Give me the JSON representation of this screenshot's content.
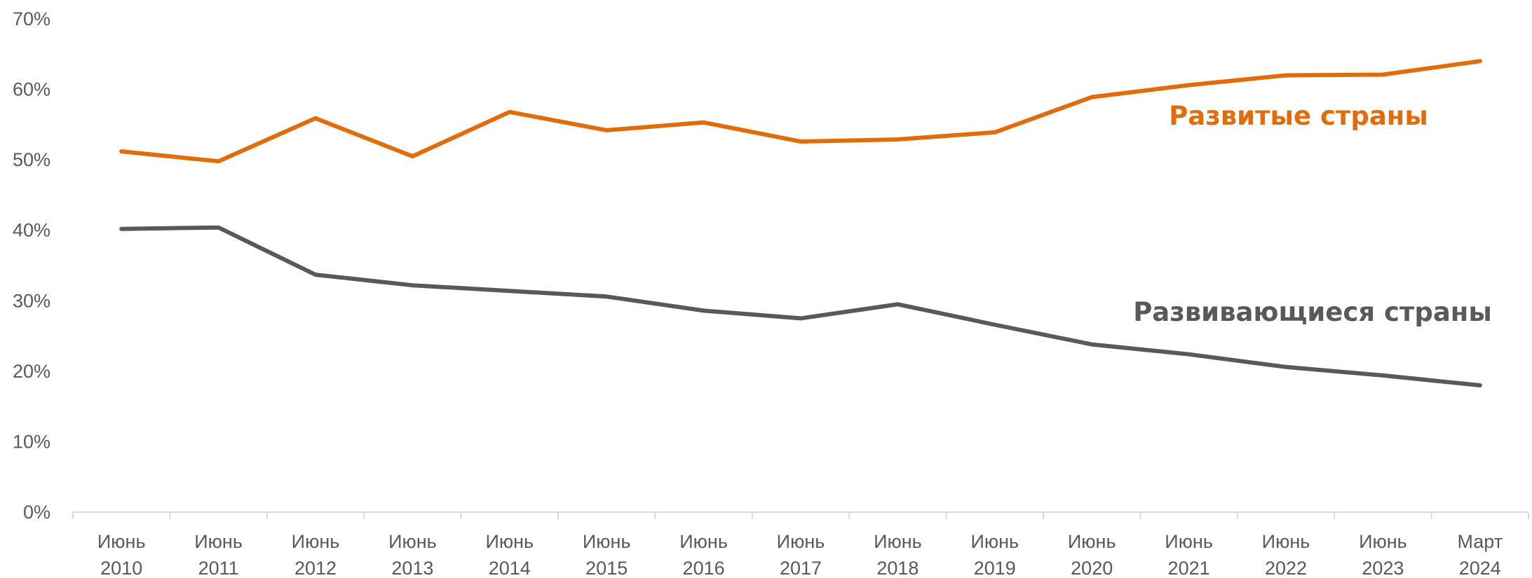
{
  "chart_data": {
    "type": "line",
    "title": "",
    "xlabel": "",
    "ylabel": "",
    "ylim": [
      0,
      70
    ],
    "yticks": [
      0,
      10,
      20,
      30,
      40,
      50,
      60,
      70
    ],
    "ytick_labels": [
      "0%",
      "10%",
      "20%",
      "30%",
      "40%",
      "50%",
      "60%",
      "70%"
    ],
    "grid": false,
    "legend": "inline labels",
    "categories": [
      [
        "Июнь",
        "2010"
      ],
      [
        "Июнь",
        "2011"
      ],
      [
        "Июнь",
        "2012"
      ],
      [
        "Июнь",
        "2013"
      ],
      [
        "Июнь",
        "2014"
      ],
      [
        "Июнь",
        "2015"
      ],
      [
        "Июнь",
        "2016"
      ],
      [
        "Июнь",
        "2017"
      ],
      [
        "Июнь",
        "2018"
      ],
      [
        "Июнь",
        "2019"
      ],
      [
        "Июнь",
        "2020"
      ],
      [
        "Июнь",
        "2021"
      ],
      [
        "Июнь",
        "2022"
      ],
      [
        "Июнь",
        "2023"
      ],
      [
        "Март",
        "2024"
      ]
    ],
    "series": [
      {
        "name": "Развитые страны",
        "color": "#e36c0a",
        "values": [
          51.2,
          49.8,
          55.9,
          50.5,
          56.8,
          54.2,
          55.3,
          52.6,
          52.9,
          53.9,
          58.9,
          60.6,
          62.0,
          62.1,
          64.0
        ]
      },
      {
        "name": "Развивающиеся страны",
        "color": "#595959",
        "values": [
          40.2,
          40.4,
          33.7,
          32.2,
          31.4,
          30.6,
          28.6,
          27.5,
          29.5,
          26.6,
          23.8,
          22.4,
          20.6,
          19.4,
          18.0
        ]
      }
    ],
    "axis_color": "#d9d9d9"
  }
}
